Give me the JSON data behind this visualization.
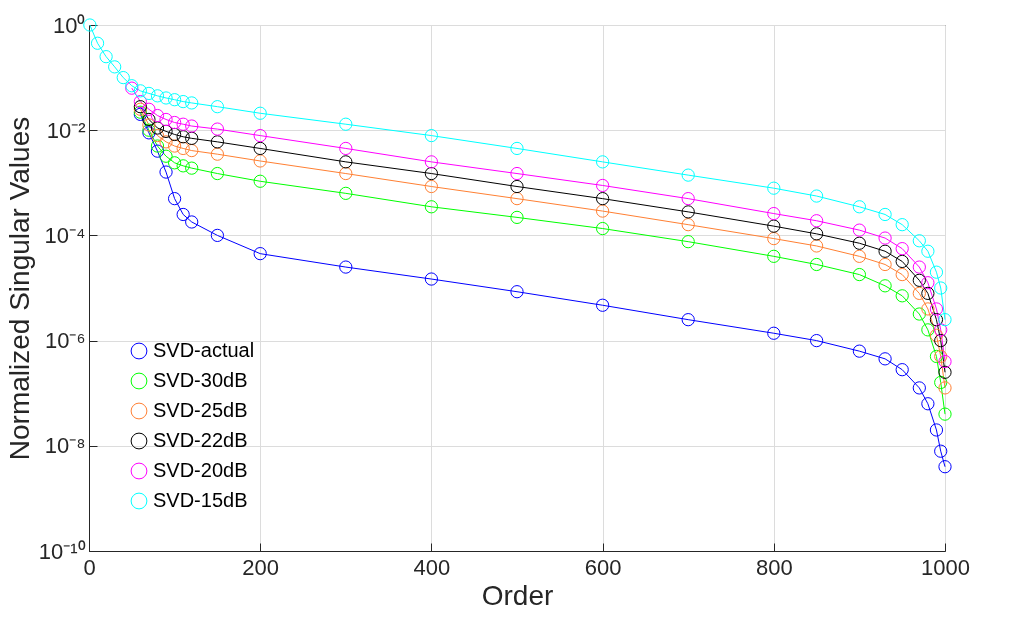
{
  "chart_data": {
    "type": "line",
    "xlabel": "Order",
    "ylabel": "Normalized Singular Values",
    "x": [
      1,
      10,
      20,
      30,
      40,
      50,
      60,
      70,
      80,
      90,
      100,
      110,
      120,
      150,
      200,
      300,
      400,
      500,
      600,
      700,
      800,
      850,
      900,
      930,
      950,
      970,
      980,
      990,
      995,
      1000
    ],
    "series": [
      {
        "name": "SVD-actual",
        "color": "#0000ff",
        "values": [
          null,
          null,
          null,
          null,
          null,
          null,
          0.02,
          0.0089,
          0.004,
          0.0016,
          0.0005,
          0.00025,
          0.00018,
          0.0001,
          4.5e-05,
          2.5e-05,
          1.48e-05,
          8.5e-06,
          4.7e-06,
          2.5e-06,
          1.38e-06,
          1e-06,
          6.3e-07,
          4.5e-07,
          2.8e-07,
          1.26e-07,
          6.3e-08,
          2e-08,
          7.9e-09,
          4e-09
        ]
      },
      {
        "name": "SVD-30dB",
        "color": "#00ff00",
        "values": [
          null,
          null,
          null,
          null,
          null,
          null,
          0.022,
          0.01,
          0.005,
          0.0032,
          0.0024,
          0.0021,
          0.0019,
          0.0015,
          0.00107,
          0.00063,
          0.00035,
          0.00022,
          0.000135,
          7.6e-05,
          4e-05,
          2.8e-05,
          1.8e-05,
          1.1e-05,
          7.1e-06,
          3.2e-06,
          1.6e-06,
          5e-07,
          1.6e-07,
          4e-08
        ]
      },
      {
        "name": "SVD-25dB",
        "color": "#ff8033",
        "values": [
          null,
          null,
          null,
          null,
          null,
          null,
          0.025,
          0.0126,
          0.0079,
          0.006,
          0.005,
          0.0045,
          0.0041,
          0.0035,
          0.0026,
          0.0015,
          0.00085,
          0.0005,
          0.00029,
          0.00016,
          8.7e-05,
          6.3e-05,
          4e-05,
          2.8e-05,
          1.8e-05,
          7.9e-06,
          4e-06,
          1.26e-06,
          5e-07,
          1.26e-07
        ]
      },
      {
        "name": "SVD-22dB",
        "color": "#000000",
        "values": [
          null,
          null,
          null,
          null,
          null,
          null,
          0.028,
          0.016,
          0.011,
          0.0095,
          0.0083,
          0.0075,
          0.007,
          0.006,
          0.0045,
          0.0025,
          0.0015,
          0.00085,
          0.0005,
          0.00028,
          0.00015,
          0.000107,
          7.1e-05,
          5e-05,
          3.2e-05,
          1.4e-05,
          7.9e-06,
          2.5e-06,
          1e-06,
          2.5e-07
        ]
      },
      {
        "name": "SVD-20dB",
        "color": "#ff00ff",
        "values": [
          null,
          null,
          null,
          null,
          null,
          0.063,
          0.035,
          0.025,
          0.019,
          0.016,
          0.014,
          0.013,
          0.012,
          0.0105,
          0.0079,
          0.0045,
          0.0025,
          0.0015,
          0.00089,
          0.0005,
          0.00026,
          0.00019,
          0.000126,
          8.9e-05,
          5.6e-05,
          2.5e-05,
          1.26e-05,
          4e-06,
          1.6e-06,
          4e-07
        ]
      },
      {
        "name": "SVD-15dB",
        "color": "#00ffff",
        "values": [
          1,
          0.45,
          0.25,
          0.16,
          0.1,
          0.07,
          0.056,
          0.05,
          0.045,
          0.041,
          0.038,
          0.035,
          0.033,
          0.028,
          0.021,
          0.013,
          0.0079,
          0.0045,
          0.0025,
          0.0014,
          0.00079,
          0.00056,
          0.00035,
          0.00025,
          0.00016,
          7.9e-05,
          5e-05,
          2e-05,
          1e-05,
          2.5e-06
        ]
      }
    ],
    "xlim": [
      0,
      1000
    ],
    "xticks": [
      0,
      200,
      400,
      600,
      800,
      1000
    ],
    "ylim": [
      1e-10,
      1
    ],
    "log": true,
    "yticks": [
      {
        "value": 1e-10,
        "label": "10⁻¹⁰"
      },
      {
        "value": 1e-08,
        "label": "10⁻⁸"
      },
      {
        "value": 1e-06,
        "label": "10⁻⁶"
      },
      {
        "value": 0.0001,
        "label": "10⁻⁴"
      },
      {
        "value": 0.01,
        "label": "10⁻²"
      },
      {
        "value": 1,
        "label": "10⁰"
      }
    ],
    "grid": true,
    "legend": "bottom left",
    "marker": "circle",
    "line_style": "solid"
  }
}
